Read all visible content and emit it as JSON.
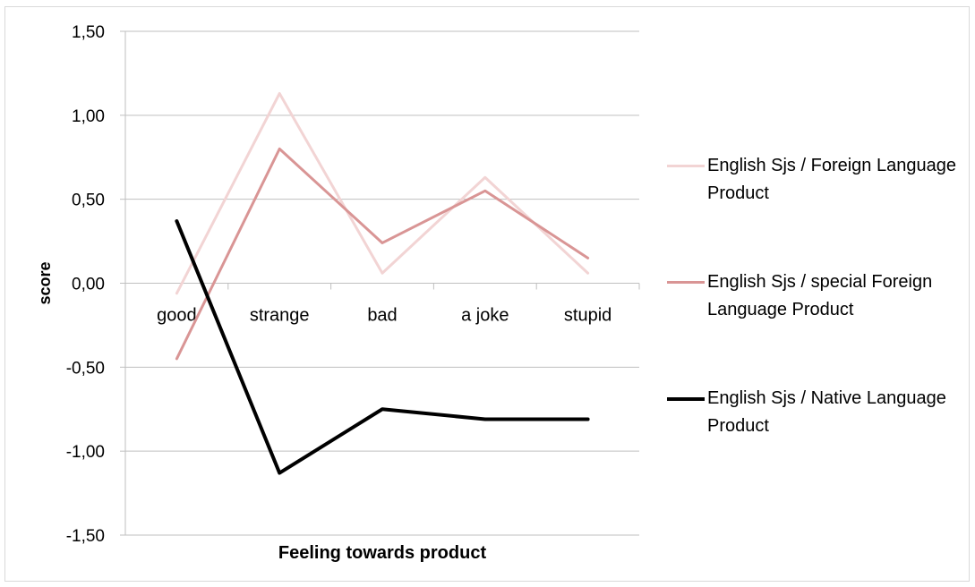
{
  "chart_data": {
    "type": "line",
    "title": "",
    "xlabel": "Feeling towards product",
    "ylabel": "score",
    "categories": [
      "good",
      "strange",
      "bad",
      "a joke",
      "stupid"
    ],
    "ylim": [
      -1.5,
      1.5
    ],
    "yticks": [
      1.5,
      1.0,
      0.5,
      0.0,
      -0.5,
      -1.0,
      -1.5
    ],
    "ytick_labels": [
      "1,50",
      "1,00",
      "0,50",
      "0,00",
      "-0,50",
      "-1,00",
      "-1,50"
    ],
    "grid": true,
    "legend_position": "right",
    "series": [
      {
        "name": "English Sjs / Foreign Language Product",
        "color": "#f2d4d4",
        "values": [
          -0.06,
          1.13,
          0.06,
          0.63,
          0.06
        ]
      },
      {
        "name": "English Sjs / special Foreign Language Product",
        "color": "#d99595",
        "values": [
          -0.45,
          0.8,
          0.24,
          0.55,
          0.15
        ]
      },
      {
        "name": "English Sjs / Native Language Product",
        "color": "#000000",
        "values": [
          0.37,
          -1.13,
          -0.75,
          -0.81,
          -0.81
        ]
      }
    ]
  }
}
